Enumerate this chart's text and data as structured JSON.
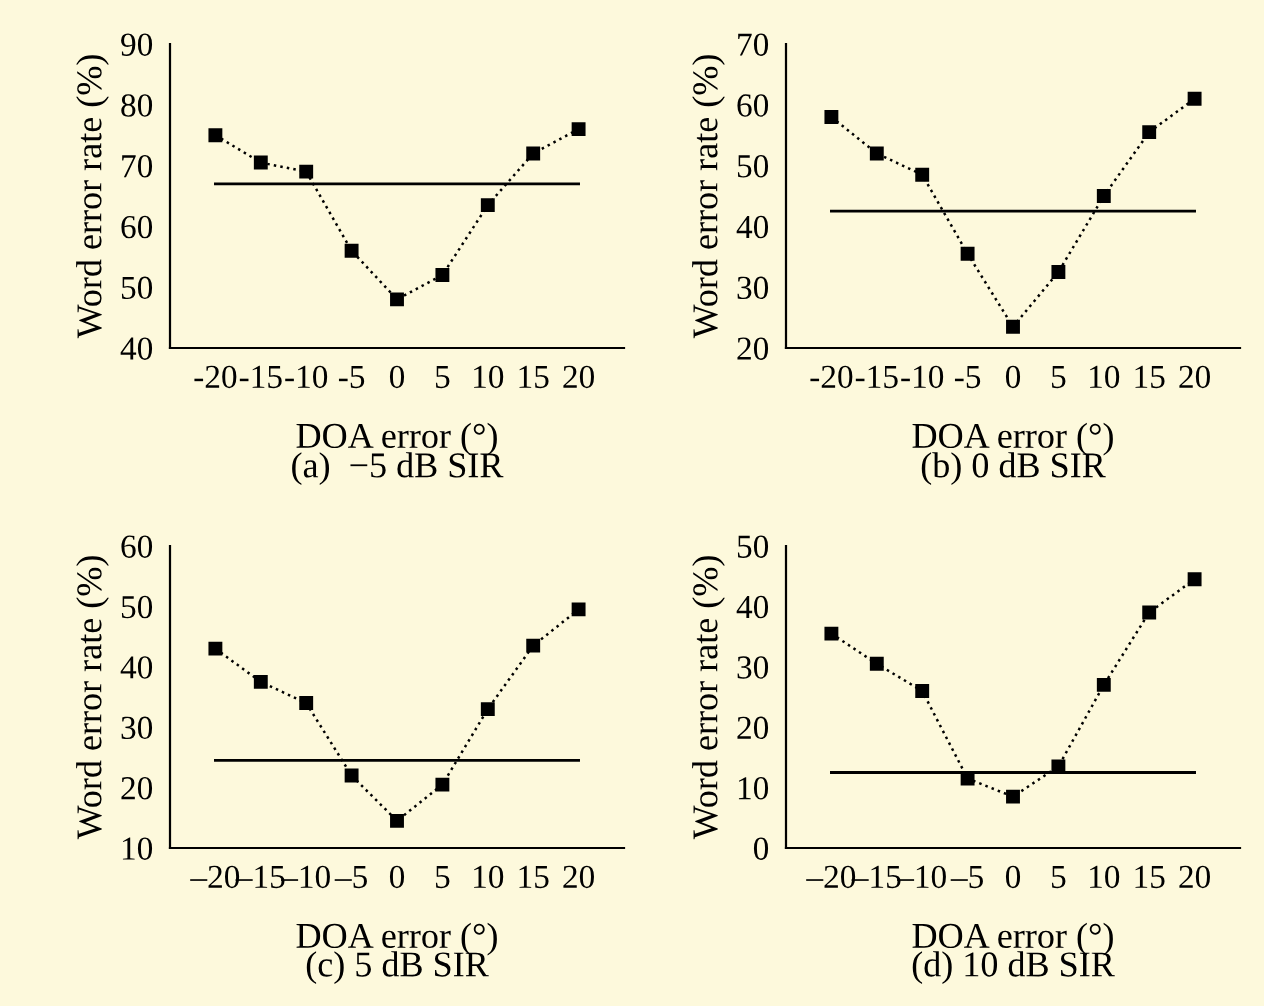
{
  "chart_data": [
    {
      "type": "line",
      "title": "(a)  −5 dB SIR",
      "xlabel": "DOA error (°)",
      "ylabel": "Word error rate (%)",
      "categories": [
        "-20",
        "-15",
        "-10",
        "-5",
        "0",
        "5",
        "10",
        "15",
        "20"
      ],
      "series": [
        {
          "color": "#000000",
          "values": [
            75,
            70.5,
            69,
            56,
            48,
            52,
            63.5,
            72,
            76
          ]
        }
      ],
      "ylim": [
        40,
        90
      ],
      "yticks": [
        40,
        50,
        60,
        70,
        80,
        90
      ],
      "marker": "square",
      "line_style": "dotted",
      "grid": false,
      "legend": false,
      "ref_lines": [
        {
          "axis": "y",
          "value": 67,
          "color": "#000000",
          "line_style": "solid"
        }
      ]
    },
    {
      "type": "line",
      "title": "(b) 0 dB SIR",
      "xlabel": "DOA error (°)",
      "ylabel": "Word error rate (%)",
      "categories": [
        "-20",
        "-15",
        "-10",
        "-5",
        "0",
        "5",
        "10",
        "15",
        "20"
      ],
      "series": [
        {
          "color": "#000000",
          "values": [
            58,
            52,
            48.5,
            35.5,
            23.5,
            32.5,
            45,
            55.5,
            61
          ]
        }
      ],
      "ylim": [
        20,
        70
      ],
      "yticks": [
        20,
        30,
        40,
        50,
        60,
        70
      ],
      "marker": "square",
      "line_style": "dotted",
      "grid": false,
      "legend": false,
      "ref_lines": [
        {
          "axis": "y",
          "value": 42.5,
          "color": "#000000",
          "line_style": "solid"
        }
      ]
    },
    {
      "type": "line",
      "title": "(c) 5 dB SIR",
      "xlabel": "DOA error (°)",
      "ylabel": "Word error rate (%)",
      "categories": [
        "–20",
        "–15",
        "–10",
        "–5",
        "0",
        "5",
        "10",
        "15",
        "20"
      ],
      "series": [
        {
          "color": "#000000",
          "values": [
            43,
            37.5,
            34,
            22,
            14.5,
            20.5,
            33,
            43.5,
            49.5
          ]
        }
      ],
      "ylim": [
        10,
        60
      ],
      "yticks": [
        10,
        20,
        30,
        40,
        50,
        60
      ],
      "marker": "square",
      "line_style": "dotted",
      "grid": false,
      "legend": false,
      "ref_lines": [
        {
          "axis": "y",
          "value": 24.5,
          "color": "#000000",
          "line_style": "solid"
        }
      ]
    },
    {
      "type": "line",
      "title": "(d) 10 dB SIR",
      "xlabel": "DOA error (°)",
      "ylabel": "Word error rate (%)",
      "categories": [
        "–20",
        "–15",
        "–10",
        "–5",
        "0",
        "5",
        "10",
        "15",
        "20"
      ],
      "series": [
        {
          "color": "#000000",
          "values": [
            35.5,
            30.5,
            26,
            11.5,
            8.5,
            13.5,
            27,
            39,
            44.5
          ]
        }
      ],
      "ylim": [
        0,
        50
      ],
      "yticks": [
        0,
        10,
        20,
        30,
        40,
        50
      ],
      "marker": "square",
      "line_style": "dotted",
      "grid": false,
      "legend": false,
      "ref_lines": [
        {
          "axis": "y",
          "value": 12.5,
          "color": "#000000",
          "line_style": "solid"
        }
      ]
    }
  ]
}
